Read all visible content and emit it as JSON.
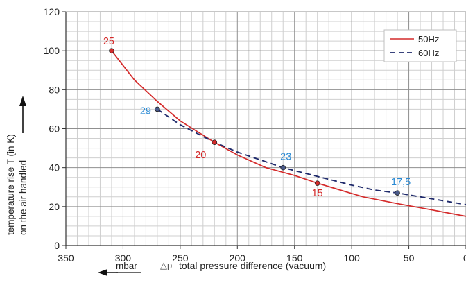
{
  "chart_data": {
    "type": "line",
    "xlabel": "total pressure difference (vacuum)",
    "xlabel_symbol": "△p",
    "xunit": "mbar",
    "ylabel_line1": "temperature rise T (in K)",
    "ylabel_line2": "on the air handled",
    "xlim": [
      350,
      0
    ],
    "ylim": [
      0,
      120
    ],
    "x_ticks": [
      350,
      300,
      250,
      200,
      150,
      100,
      50,
      0
    ],
    "y_ticks": [
      0,
      20,
      40,
      60,
      80,
      100,
      120
    ],
    "x_tick_labels": [
      "350",
      "300",
      "250",
      "200",
      "150",
      "100",
      "50",
      "0"
    ],
    "y_tick_labels": [
      "0",
      "20",
      "40",
      "60",
      "80",
      "100",
      "120"
    ],
    "grid": true,
    "legend_position": "top-right",
    "series": [
      {
        "name": "50Hz",
        "color": "#d42a2a",
        "dash": "solid",
        "x": [
          310,
          290,
          270,
          250,
          220,
          200,
          175,
          150,
          130,
          110,
          90,
          60,
          30,
          0
        ],
        "y": [
          100,
          85,
          74,
          64,
          53,
          46.5,
          40,
          36,
          32,
          28.5,
          25,
          21.5,
          18.3,
          15
        ],
        "markers": [
          {
            "x": 310,
            "y": 100,
            "label": "25"
          },
          {
            "x": 220,
            "y": 53,
            "label": "20"
          },
          {
            "x": 130,
            "y": 32,
            "label": "15"
          }
        ]
      },
      {
        "name": "60Hz",
        "color": "#1f2a6b",
        "dash": "dashed",
        "x": [
          270,
          250,
          220,
          200,
          160,
          130,
          100,
          80,
          60,
          30,
          0
        ],
        "y": [
          70,
          62,
          53,
          48,
          40,
          35.5,
          31,
          28.5,
          27,
          24,
          21
        ],
        "markers": [
          {
            "x": 270,
            "y": 70,
            "label": "29"
          },
          {
            "x": 160,
            "y": 40,
            "label": "23"
          },
          {
            "x": 60,
            "y": 27,
            "label": "17,5"
          }
        ]
      }
    ],
    "marker_label_color_50": "#d42a2a",
    "marker_label_color_60": "#2a8ad4"
  }
}
